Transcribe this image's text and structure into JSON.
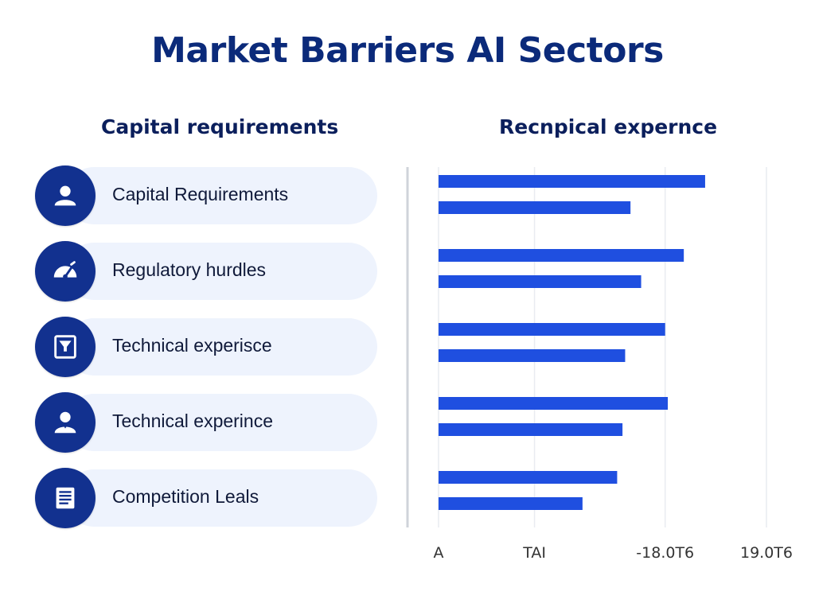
{
  "title": "Market Barriers AI Sectors",
  "left_heading": "Capital requirements",
  "right_heading": "Recnpical expernce",
  "barriers": [
    {
      "label": "Capital Requirements",
      "icon": "person-icon"
    },
    {
      "label": "Regulatory hurdles",
      "icon": "gauge-icon"
    },
    {
      "label": "Technical experisce",
      "icon": "funnel-icon"
    },
    {
      "label": "Technical experince",
      "icon": "person-icon"
    },
    {
      "label": "Competition Leals",
      "icon": "document-icon"
    }
  ],
  "colors": {
    "title": "#0b2a7a",
    "icon_circle": "#12318f",
    "pill": "#eef3fd",
    "bar": "#1f4fe0"
  },
  "chart_data": {
    "type": "bar",
    "orientation": "horizontal",
    "categories": [
      "Capital Requirements",
      "Regulatory hurdles",
      "Technical experisce",
      "Technical experince",
      "Competition Leals"
    ],
    "series": [
      {
        "values": [
          100,
          92,
          85,
          86,
          67
        ]
      },
      {
        "values": [
          72,
          76,
          70,
          69,
          54
        ]
      }
    ],
    "xlim": [
      0,
      123
    ],
    "grid": true,
    "x_tick_labels": [
      {
        "value": 0,
        "label": "A"
      },
      {
        "value": 36,
        "label": "TAI"
      },
      {
        "value": 85,
        "label": "-18.0T6"
      },
      {
        "value": 123,
        "label": "19.0T6"
      }
    ]
  }
}
